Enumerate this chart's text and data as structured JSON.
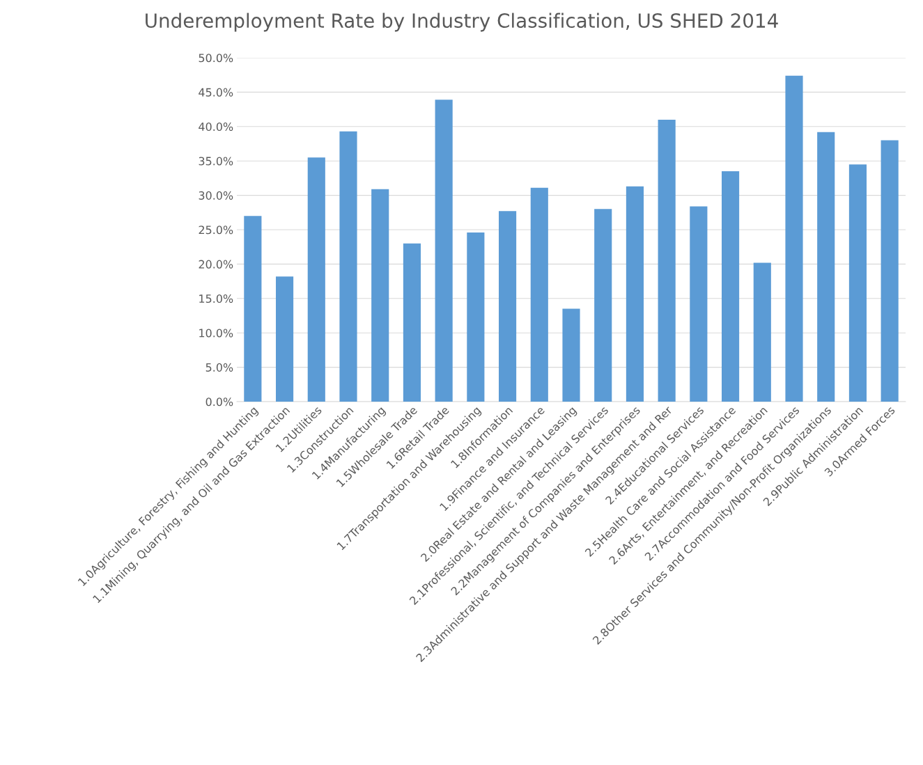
{
  "chart_data": {
    "type": "bar",
    "title": "Underemployment Rate by Industry Classification, US SHED 2014",
    "categories": [
      "1.0Agriculture, Forestry, Fishing and Hunting",
      "1.1Mining, Quarrying, and Oil and Gas Extraction",
      "1.2Utilities",
      "1.3Construction",
      "1.4Manufacturing",
      "1.5Wholesale Trade",
      "1.6Retail Trade",
      "1.7Transportation and Warehousing",
      "1.8Information",
      "1.9Finance and Insurance",
      "2.0Real Estate and Rental and Leasing",
      "2.1Professional, Scientific, and Technical Services",
      "2.2Management of Companies and Enterprises",
      "2.3Administrative and Support and Waste Management and Rer",
      "2.4Educational Services",
      "2.5Health Care and Social Assistance",
      "2.6Arts, Entertainment, and Recreation",
      "2.7Accommodation and Food Services",
      "2.8Other Services and Community/Non-Profit Organizations",
      "2.9Public Administration",
      "3.0Armed Forces"
    ],
    "values": [
      27.0,
      18.2,
      35.5,
      39.3,
      30.9,
      23.0,
      43.9,
      24.6,
      27.7,
      31.1,
      13.5,
      28.0,
      31.3,
      41.0,
      28.4,
      33.5,
      20.2,
      47.4,
      39.2,
      34.5,
      38.0
    ],
    "color": "#5b9bd5",
    "ylim": [
      0,
      50
    ],
    "yticks": [
      {
        "value": 0,
        "label": "0.0%"
      },
      {
        "value": 5,
        "label": "5.0%"
      },
      {
        "value": 10,
        "label": "10.0%"
      },
      {
        "value": 15,
        "label": "15.0%"
      },
      {
        "value": 20,
        "label": "20.0%"
      },
      {
        "value": 25,
        "label": "25.0%"
      },
      {
        "value": 30,
        "label": "30.0%"
      },
      {
        "value": 35,
        "label": "35.0%"
      },
      {
        "value": 40,
        "label": "40.0%"
      },
      {
        "value": 45,
        "label": "45.0%"
      },
      {
        "value": 50,
        "label": "50.0%"
      }
    ],
    "grid": "y"
  }
}
